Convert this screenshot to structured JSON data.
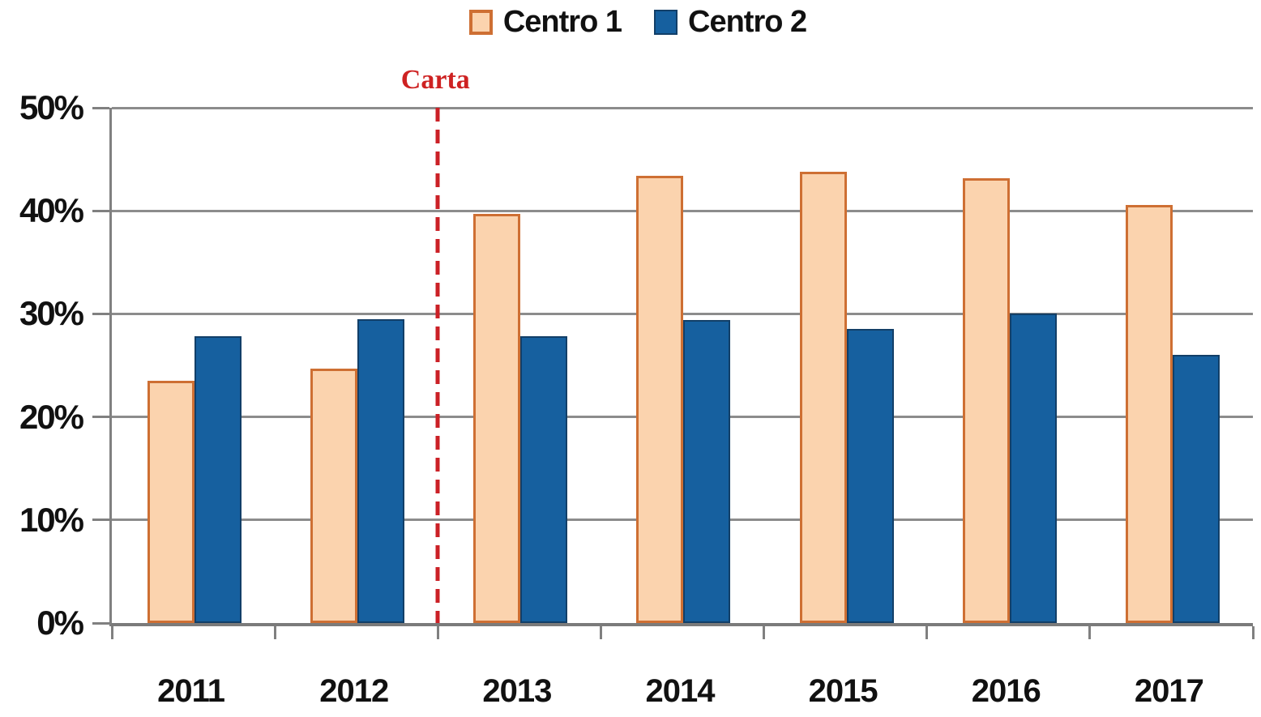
{
  "chart_data": {
    "type": "bar",
    "title": "",
    "xlabel": "",
    "ylabel": "",
    "categories": [
      "2011",
      "2012",
      "2013",
      "2014",
      "2015",
      "2016",
      "2017"
    ],
    "series": [
      {
        "name": "Centro 1",
        "values": [
          23.5,
          24.7,
          39.7,
          43.4,
          43.8,
          43.2,
          40.6
        ],
        "fill": "#FBD3AE",
        "border": "#CE6F33"
      },
      {
        "name": "Centro 2",
        "values": [
          27.8,
          29.5,
          27.8,
          29.4,
          28.5,
          30.0,
          26.0
        ],
        "fill": "#16609F",
        "border": "#123F68"
      }
    ],
    "ylim": [
      0,
      50
    ],
    "ytick_step": 10,
    "ytick_labels": [
      "0%",
      "10%",
      "20%",
      "30%",
      "40%",
      "50%"
    ],
    "grid": "horizontal",
    "legend_position": "top-center",
    "annotation_line": {
      "label": "Carta",
      "between": [
        "2012",
        "2013"
      ],
      "style": "dashed",
      "line_color": "#CB2026",
      "label_color": "#CE2222"
    }
  },
  "colors": {
    "background": "#FFFFFF",
    "gridline": "#8C8C8C",
    "axis": "#808080",
    "text": "#111111"
  }
}
